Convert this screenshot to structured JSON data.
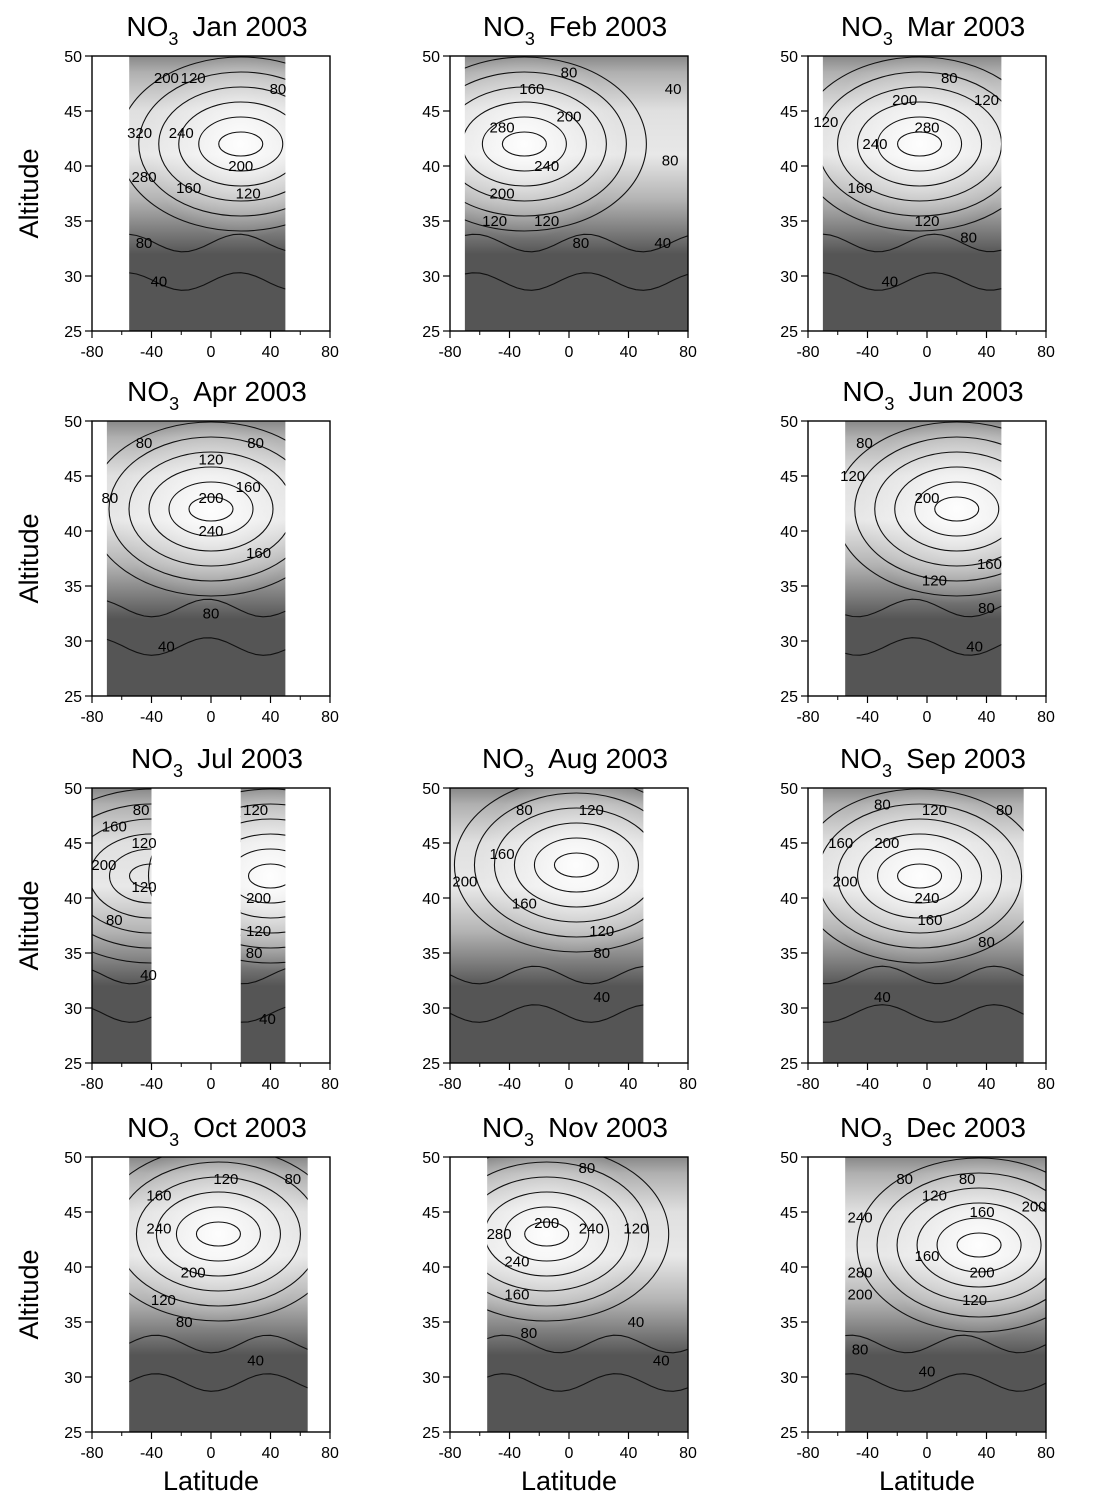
{
  "chart_data": {
    "type": "heatmap",
    "variable_label": "NO",
    "variable_subscript": "3",
    "xlabel": "Latitude",
    "ylabel": "Altitude",
    "xlim": [
      -80,
      80
    ],
    "ylim": [
      25,
      50
    ],
    "xticks": [
      "-80",
      "-40",
      "0",
      "40",
      "80"
    ],
    "yticks": [
      "25",
      "30",
      "35",
      "40",
      "45",
      "50"
    ],
    "grid": "none",
    "colormap": [
      "#555555",
      "#ffffff"
    ],
    "panels": [
      {
        "month": "Jan 2003",
        "row": 0,
        "col": 0,
        "lat_range": [
          [
            -55,
            50
          ]
        ],
        "max_lat": 20,
        "max_alt": 42,
        "contours": [
          {
            "label": "200",
            "lat": -30,
            "alt": 48
          },
          {
            "label": "120",
            "lat": -12,
            "alt": 48
          },
          {
            "label": "80",
            "lat": 45,
            "alt": 47
          },
          {
            "label": "320",
            "lat": -48,
            "alt": 43
          },
          {
            "label": "240",
            "lat": -20,
            "alt": 43
          },
          {
            "label": "200",
            "lat": 20,
            "alt": 40
          },
          {
            "label": "280",
            "lat": -45,
            "alt": 39
          },
          {
            "label": "160",
            "lat": -15,
            "alt": 38
          },
          {
            "label": "120",
            "lat": 25,
            "alt": 37.5
          },
          {
            "label": "80",
            "lat": -45,
            "alt": 33
          },
          {
            "label": "40",
            "lat": -35,
            "alt": 29.5
          }
        ]
      },
      {
        "month": "Feb 2003",
        "row": 0,
        "col": 1,
        "lat_range": [
          [
            -70,
            80
          ]
        ],
        "max_lat": -30,
        "max_alt": 42,
        "contours": [
          {
            "label": "80",
            "lat": 0,
            "alt": 48.5
          },
          {
            "label": "160",
            "lat": -25,
            "alt": 47
          },
          {
            "label": "40",
            "lat": 70,
            "alt": 47
          },
          {
            "label": "200",
            "lat": 0,
            "alt": 44.5
          },
          {
            "label": "280",
            "lat": -45,
            "alt": 43.5
          },
          {
            "label": "240",
            "lat": -15,
            "alt": 40
          },
          {
            "label": "80",
            "lat": 68,
            "alt": 40.5
          },
          {
            "label": "200",
            "lat": -45,
            "alt": 37.5
          },
          {
            "label": "120",
            "lat": -50,
            "alt": 35
          },
          {
            "label": "120",
            "lat": -15,
            "alt": 35
          },
          {
            "label": "80",
            "lat": 8,
            "alt": 33
          },
          {
            "label": "40",
            "lat": 63,
            "alt": 33
          }
        ]
      },
      {
        "month": "Mar 2003",
        "row": 0,
        "col": 2,
        "lat_range": [
          [
            -70,
            50
          ]
        ],
        "max_lat": -5,
        "max_alt": 42,
        "contours": [
          {
            "label": "80",
            "lat": 15,
            "alt": 48
          },
          {
            "label": "200",
            "lat": -15,
            "alt": 46
          },
          {
            "label": "120",
            "lat": 40,
            "alt": 46
          },
          {
            "label": "120",
            "lat": -68,
            "alt": 44
          },
          {
            "label": "240",
            "lat": -35,
            "alt": 42
          },
          {
            "label": "280",
            "lat": 0,
            "alt": 43.5
          },
          {
            "label": "160",
            "lat": -45,
            "alt": 38
          },
          {
            "label": "120",
            "lat": 0,
            "alt": 35
          },
          {
            "label": "80",
            "lat": 28,
            "alt": 33.5
          },
          {
            "label": "40",
            "lat": -25,
            "alt": 29.5
          }
        ]
      },
      {
        "month": "Apr 2003",
        "row": 1,
        "col": 0,
        "lat_range": [
          [
            -70,
            50
          ]
        ],
        "max_lat": 0,
        "max_alt": 42,
        "contours": [
          {
            "label": "80",
            "lat": -45,
            "alt": 48
          },
          {
            "label": "120",
            "lat": 0,
            "alt": 46.5
          },
          {
            "label": "80",
            "lat": 30,
            "alt": 48
          },
          {
            "label": "160",
            "lat": 25,
            "alt": 44
          },
          {
            "label": "80",
            "lat": -68,
            "alt": 43
          },
          {
            "label": "200",
            "lat": 0,
            "alt": 43
          },
          {
            "label": "240",
            "lat": 0,
            "alt": 40
          },
          {
            "label": "160",
            "lat": 32,
            "alt": 38
          },
          {
            "label": "80",
            "lat": 0,
            "alt": 32.5
          },
          {
            "label": "40",
            "lat": -30,
            "alt": 29.5
          }
        ]
      },
      {
        "month": "Jun 2003",
        "row": 1,
        "col": 2,
        "lat_range": [
          [
            -55,
            50
          ]
        ],
        "max_lat": 20,
        "max_alt": 42,
        "contours": [
          {
            "label": "80",
            "lat": -42,
            "alt": 48
          },
          {
            "label": "120",
            "lat": -50,
            "alt": 45
          },
          {
            "label": "200",
            "lat": 0,
            "alt": 43
          },
          {
            "label": "160",
            "lat": 42,
            "alt": 37
          },
          {
            "label": "120",
            "lat": 5,
            "alt": 35.5
          },
          {
            "label": "80",
            "lat": 40,
            "alt": 33
          },
          {
            "label": "40",
            "lat": 32,
            "alt": 29.5
          }
        ]
      },
      {
        "month": "Jul 2003",
        "row": 2,
        "col": 0,
        "lat_range": [
          [
            -80,
            -40
          ],
          [
            20,
            50
          ]
        ],
        "max_lat": 40,
        "max_alt": 42,
        "contours": [
          {
            "label": "80",
            "lat": -47,
            "alt": 48
          },
          {
            "label": "160",
            "lat": -65,
            "alt": 46.5
          },
          {
            "label": "120",
            "lat": -45,
            "alt": 45
          },
          {
            "label": "200",
            "lat": -72,
            "alt": 43
          },
          {
            "label": "120",
            "lat": -45,
            "alt": 41
          },
          {
            "label": "80",
            "lat": -65,
            "alt": 38
          },
          {
            "label": "40",
            "lat": -42,
            "alt": 33
          },
          {
            "label": "120",
            "lat": 30,
            "alt": 48
          },
          {
            "label": "200",
            "lat": 32,
            "alt": 40
          },
          {
            "label": "120",
            "lat": 32,
            "alt": 37
          },
          {
            "label": "80",
            "lat": 29,
            "alt": 35
          },
          {
            "label": "40",
            "lat": 38,
            "alt": 29
          }
        ]
      },
      {
        "month": "Aug 2003",
        "row": 2,
        "col": 1,
        "lat_range": [
          [
            -80,
            50
          ]
        ],
        "max_lat": 5,
        "max_alt": 43,
        "contours": [
          {
            "label": "80",
            "lat": -30,
            "alt": 48
          },
          {
            "label": "120",
            "lat": 15,
            "alt": 48
          },
          {
            "label": "160",
            "lat": -45,
            "alt": 44
          },
          {
            "label": "200",
            "lat": -70,
            "alt": 41.5
          },
          {
            "label": "160",
            "lat": -30,
            "alt": 39.5
          },
          {
            "label": "120",
            "lat": 22,
            "alt": 37
          },
          {
            "label": "80",
            "lat": 22,
            "alt": 35
          },
          {
            "label": "40",
            "lat": 22,
            "alt": 31
          }
        ]
      },
      {
        "month": "Sep 2003",
        "row": 2,
        "col": 2,
        "lat_range": [
          [
            -70,
            65
          ]
        ],
        "max_lat": -5,
        "max_alt": 42,
        "contours": [
          {
            "label": "80",
            "lat": -30,
            "alt": 48.5
          },
          {
            "label": "120",
            "lat": 5,
            "alt": 48
          },
          {
            "label": "80",
            "lat": 52,
            "alt": 48
          },
          {
            "label": "160",
            "lat": -58,
            "alt": 45
          },
          {
            "label": "200",
            "lat": -27,
            "alt": 45
          },
          {
            "label": "200",
            "lat": -55,
            "alt": 41.5
          },
          {
            "label": "240",
            "lat": 0,
            "alt": 40
          },
          {
            "label": "160",
            "lat": 2,
            "alt": 38
          },
          {
            "label": "80",
            "lat": 40,
            "alt": 36
          },
          {
            "label": "40",
            "lat": -30,
            "alt": 31
          }
        ]
      },
      {
        "month": "Oct 2003",
        "row": 3,
        "col": 0,
        "lat_range": [
          [
            -55,
            65
          ]
        ],
        "max_lat": 5,
        "max_alt": 43,
        "contours": [
          {
            "label": "120",
            "lat": 10,
            "alt": 48
          },
          {
            "label": "80",
            "lat": 55,
            "alt": 48
          },
          {
            "label": "160",
            "lat": -35,
            "alt": 46.5
          },
          {
            "label": "240",
            "lat": -35,
            "alt": 43.5
          },
          {
            "label": "200",
            "lat": -12,
            "alt": 39.5
          },
          {
            "label": "120",
            "lat": -32,
            "alt": 37
          },
          {
            "label": "80",
            "lat": -18,
            "alt": 35
          },
          {
            "label": "40",
            "lat": 30,
            "alt": 31.5
          }
        ]
      },
      {
        "month": "Nov 2003",
        "row": 3,
        "col": 1,
        "lat_range": [
          [
            -55,
            80
          ]
        ],
        "max_lat": -15,
        "max_alt": 43,
        "contours": [
          {
            "label": "80",
            "lat": 12,
            "alt": 49
          },
          {
            "label": "200",
            "lat": -15,
            "alt": 44
          },
          {
            "label": "240",
            "lat": 15,
            "alt": 43.5
          },
          {
            "label": "120",
            "lat": 45,
            "alt": 43.5
          },
          {
            "label": "280",
            "lat": -47,
            "alt": 43
          },
          {
            "label": "240",
            "lat": -35,
            "alt": 40.5
          },
          {
            "label": "160",
            "lat": -35,
            "alt": 37.5
          },
          {
            "label": "80",
            "lat": -27,
            "alt": 34
          },
          {
            "label": "40",
            "lat": 45,
            "alt": 35
          },
          {
            "label": "40",
            "lat": 62,
            "alt": 31.5
          }
        ]
      },
      {
        "month": "Dec 2003",
        "row": 3,
        "col": 2,
        "lat_range": [
          [
            -55,
            80
          ]
        ],
        "max_lat": 35,
        "max_alt": 42,
        "contours": [
          {
            "label": "80",
            "lat": -15,
            "alt": 48
          },
          {
            "label": "80",
            "lat": 27,
            "alt": 48
          },
          {
            "label": "120",
            "lat": 5,
            "alt": 46.5
          },
          {
            "label": "240",
            "lat": -45,
            "alt": 44.5
          },
          {
            "label": "160",
            "lat": 37,
            "alt": 45
          },
          {
            "label": "200",
            "lat": 72,
            "alt": 45.5
          },
          {
            "label": "160",
            "lat": 0,
            "alt": 41
          },
          {
            "label": "280",
            "lat": -45,
            "alt": 39.5
          },
          {
            "label": "200",
            "lat": 37,
            "alt": 39.5
          },
          {
            "label": "200",
            "lat": -45,
            "alt": 37.5
          },
          {
            "label": "120",
            "lat": 32,
            "alt": 37
          },
          {
            "label": "80",
            "lat": -45,
            "alt": 32.5
          },
          {
            "label": "40",
            "lat": 0,
            "alt": 30.5
          }
        ]
      }
    ]
  }
}
